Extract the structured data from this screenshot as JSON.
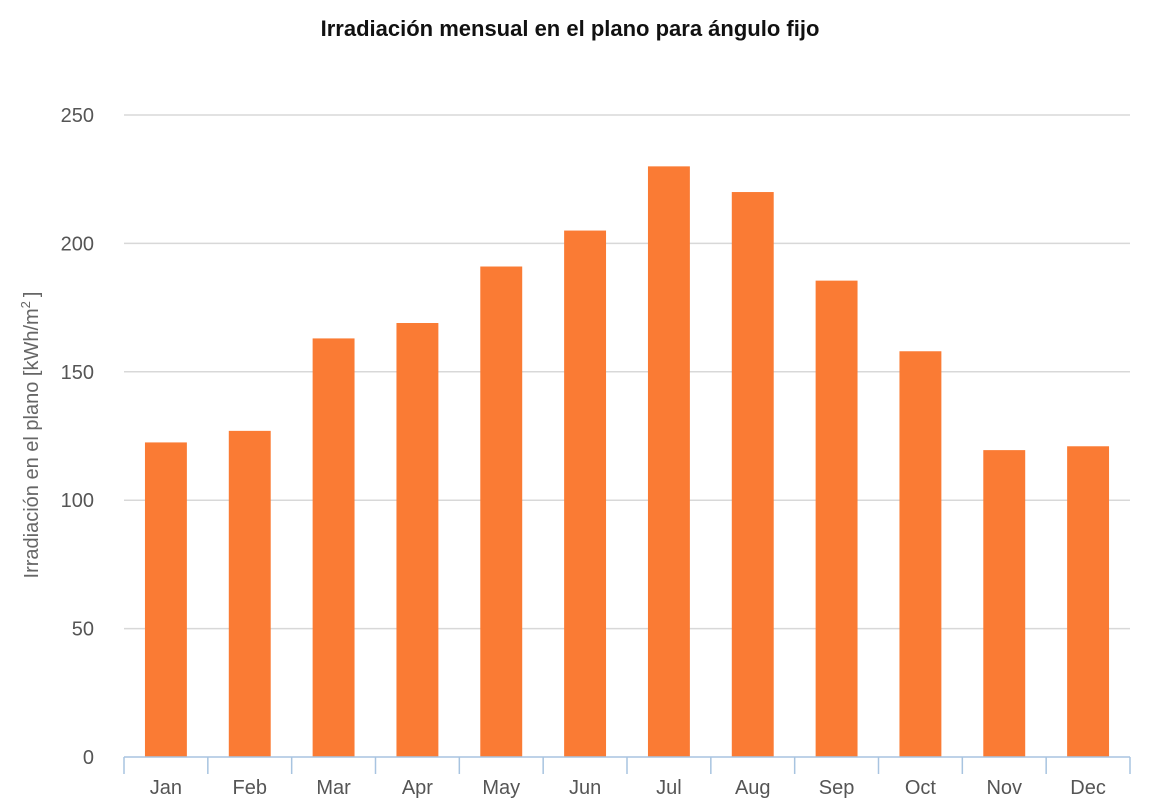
{
  "chart_data": {
    "type": "bar",
    "title": "Irradiación mensual en el plano para ángulo fijo",
    "xlabel": "",
    "ylabel": "Irradiación en el plano [kWh/m",
    "ylabel_superscript": "2",
    "ylabel_suffix": "]",
    "categories": [
      "Jan",
      "Feb",
      "Mar",
      "Apr",
      "May",
      "Jun",
      "Jul",
      "Aug",
      "Sep",
      "Oct",
      "Nov",
      "Dec"
    ],
    "values": [
      122.5,
      127,
      163,
      169,
      191,
      205,
      230,
      220,
      185.5,
      158,
      119.5,
      121
    ],
    "ylim": [
      0,
      250
    ],
    "yticks": [
      "0",
      "50",
      "100",
      "150",
      "200",
      "250"
    ],
    "grid": true,
    "legend": "none",
    "bar_color": "#fa7b34"
  }
}
